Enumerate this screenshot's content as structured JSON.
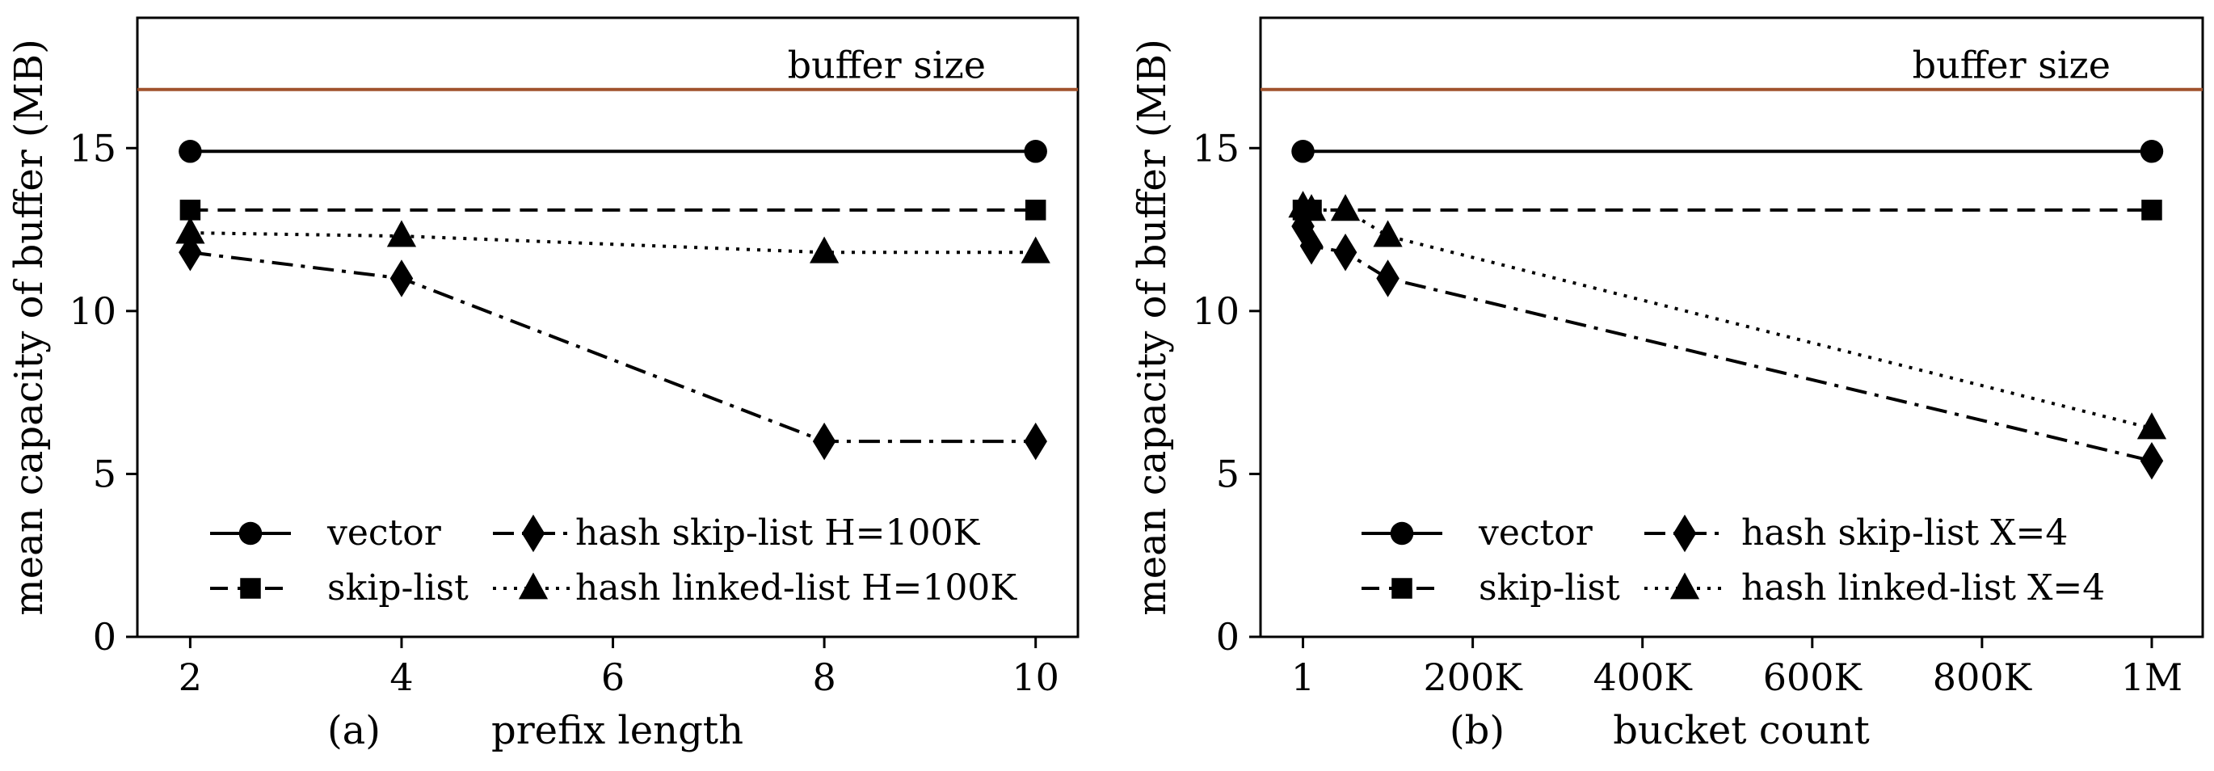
{
  "chart_data": [
    {
      "type": "line",
      "panel_label": "(a)",
      "xlabel": "prefix length",
      "ylabel": "mean capacity of buffer (MB)",
      "xlim": [
        1.5,
        10.4
      ],
      "ylim": [
        0,
        19
      ],
      "x_ticks": [
        2,
        4,
        6,
        8,
        10
      ],
      "x_tick_labels": [
        "2",
        "4",
        "6",
        "8",
        "10"
      ],
      "y_ticks": [
        0,
        5,
        10,
        15
      ],
      "y_tick_labels": [
        "0",
        "5",
        "10",
        "15"
      ],
      "reference_line": {
        "label": "buffer size",
        "y": 16.8,
        "color": "#a0522d"
      },
      "legend_position": "lower-center",
      "series": [
        {
          "name": "vector",
          "marker": "circle",
          "dash": "solid",
          "x": [
            2,
            10
          ],
          "y": [
            14.9,
            14.9
          ]
        },
        {
          "name": "skip-list",
          "marker": "square",
          "dash": "dashed",
          "x": [
            2,
            10
          ],
          "y": [
            13.1,
            13.1
          ]
        },
        {
          "name": "hash skip-list H=100K",
          "marker": "diamond",
          "dash": "dashdot",
          "x": [
            2,
            4,
            8,
            10
          ],
          "y": [
            11.8,
            11.0,
            6.0,
            6.0
          ]
        },
        {
          "name": "hash linked-list H=100K",
          "marker": "triangle",
          "dash": "dotted",
          "x": [
            2,
            4,
            8,
            10
          ],
          "y": [
            12.4,
            12.3,
            11.8,
            11.8
          ]
        }
      ]
    },
    {
      "type": "line",
      "panel_label": "(b)",
      "xlabel": "bucket count",
      "ylabel": "mean capacity of buffer (MB)",
      "xlim": [
        -50000,
        1060000
      ],
      "ylim": [
        0,
        19
      ],
      "x_ticks": [
        1,
        200000,
        400000,
        600000,
        800000,
        1000000
      ],
      "x_tick_labels": [
        "1",
        "200K",
        "400K",
        "600K",
        "800K",
        "1M"
      ],
      "y_ticks": [
        0,
        5,
        10,
        15
      ],
      "y_tick_labels": [
        "0",
        "5",
        "10",
        "15"
      ],
      "reference_line": {
        "label": "buffer size",
        "y": 16.8,
        "color": "#a0522d"
      },
      "legend_position": "lower-center",
      "series": [
        {
          "name": "vector",
          "marker": "circle",
          "dash": "solid",
          "x": [
            1,
            1000000
          ],
          "y": [
            14.9,
            14.9
          ]
        },
        {
          "name": "skip-list",
          "marker": "square",
          "dash": "dashed",
          "x": [
            1,
            10000,
            1000000
          ],
          "y": [
            13.1,
            13.1,
            13.1
          ]
        },
        {
          "name": "hash skip-list X=4",
          "marker": "diamond",
          "dash": "dashdot",
          "x": [
            1,
            10000,
            50000,
            100000,
            1000000
          ],
          "y": [
            12.6,
            12.0,
            11.8,
            11.0,
            5.4
          ]
        },
        {
          "name": "hash linked-list X=4",
          "marker": "triangle",
          "dash": "dotted",
          "x": [
            1,
            10000,
            50000,
            100000,
            1000000
          ],
          "y": [
            13.2,
            13.1,
            13.1,
            12.3,
            6.4
          ]
        }
      ]
    }
  ],
  "colors": {
    "lines": "#000000",
    "buffer_line": "#a0522d",
    "background": "#ffffff"
  }
}
